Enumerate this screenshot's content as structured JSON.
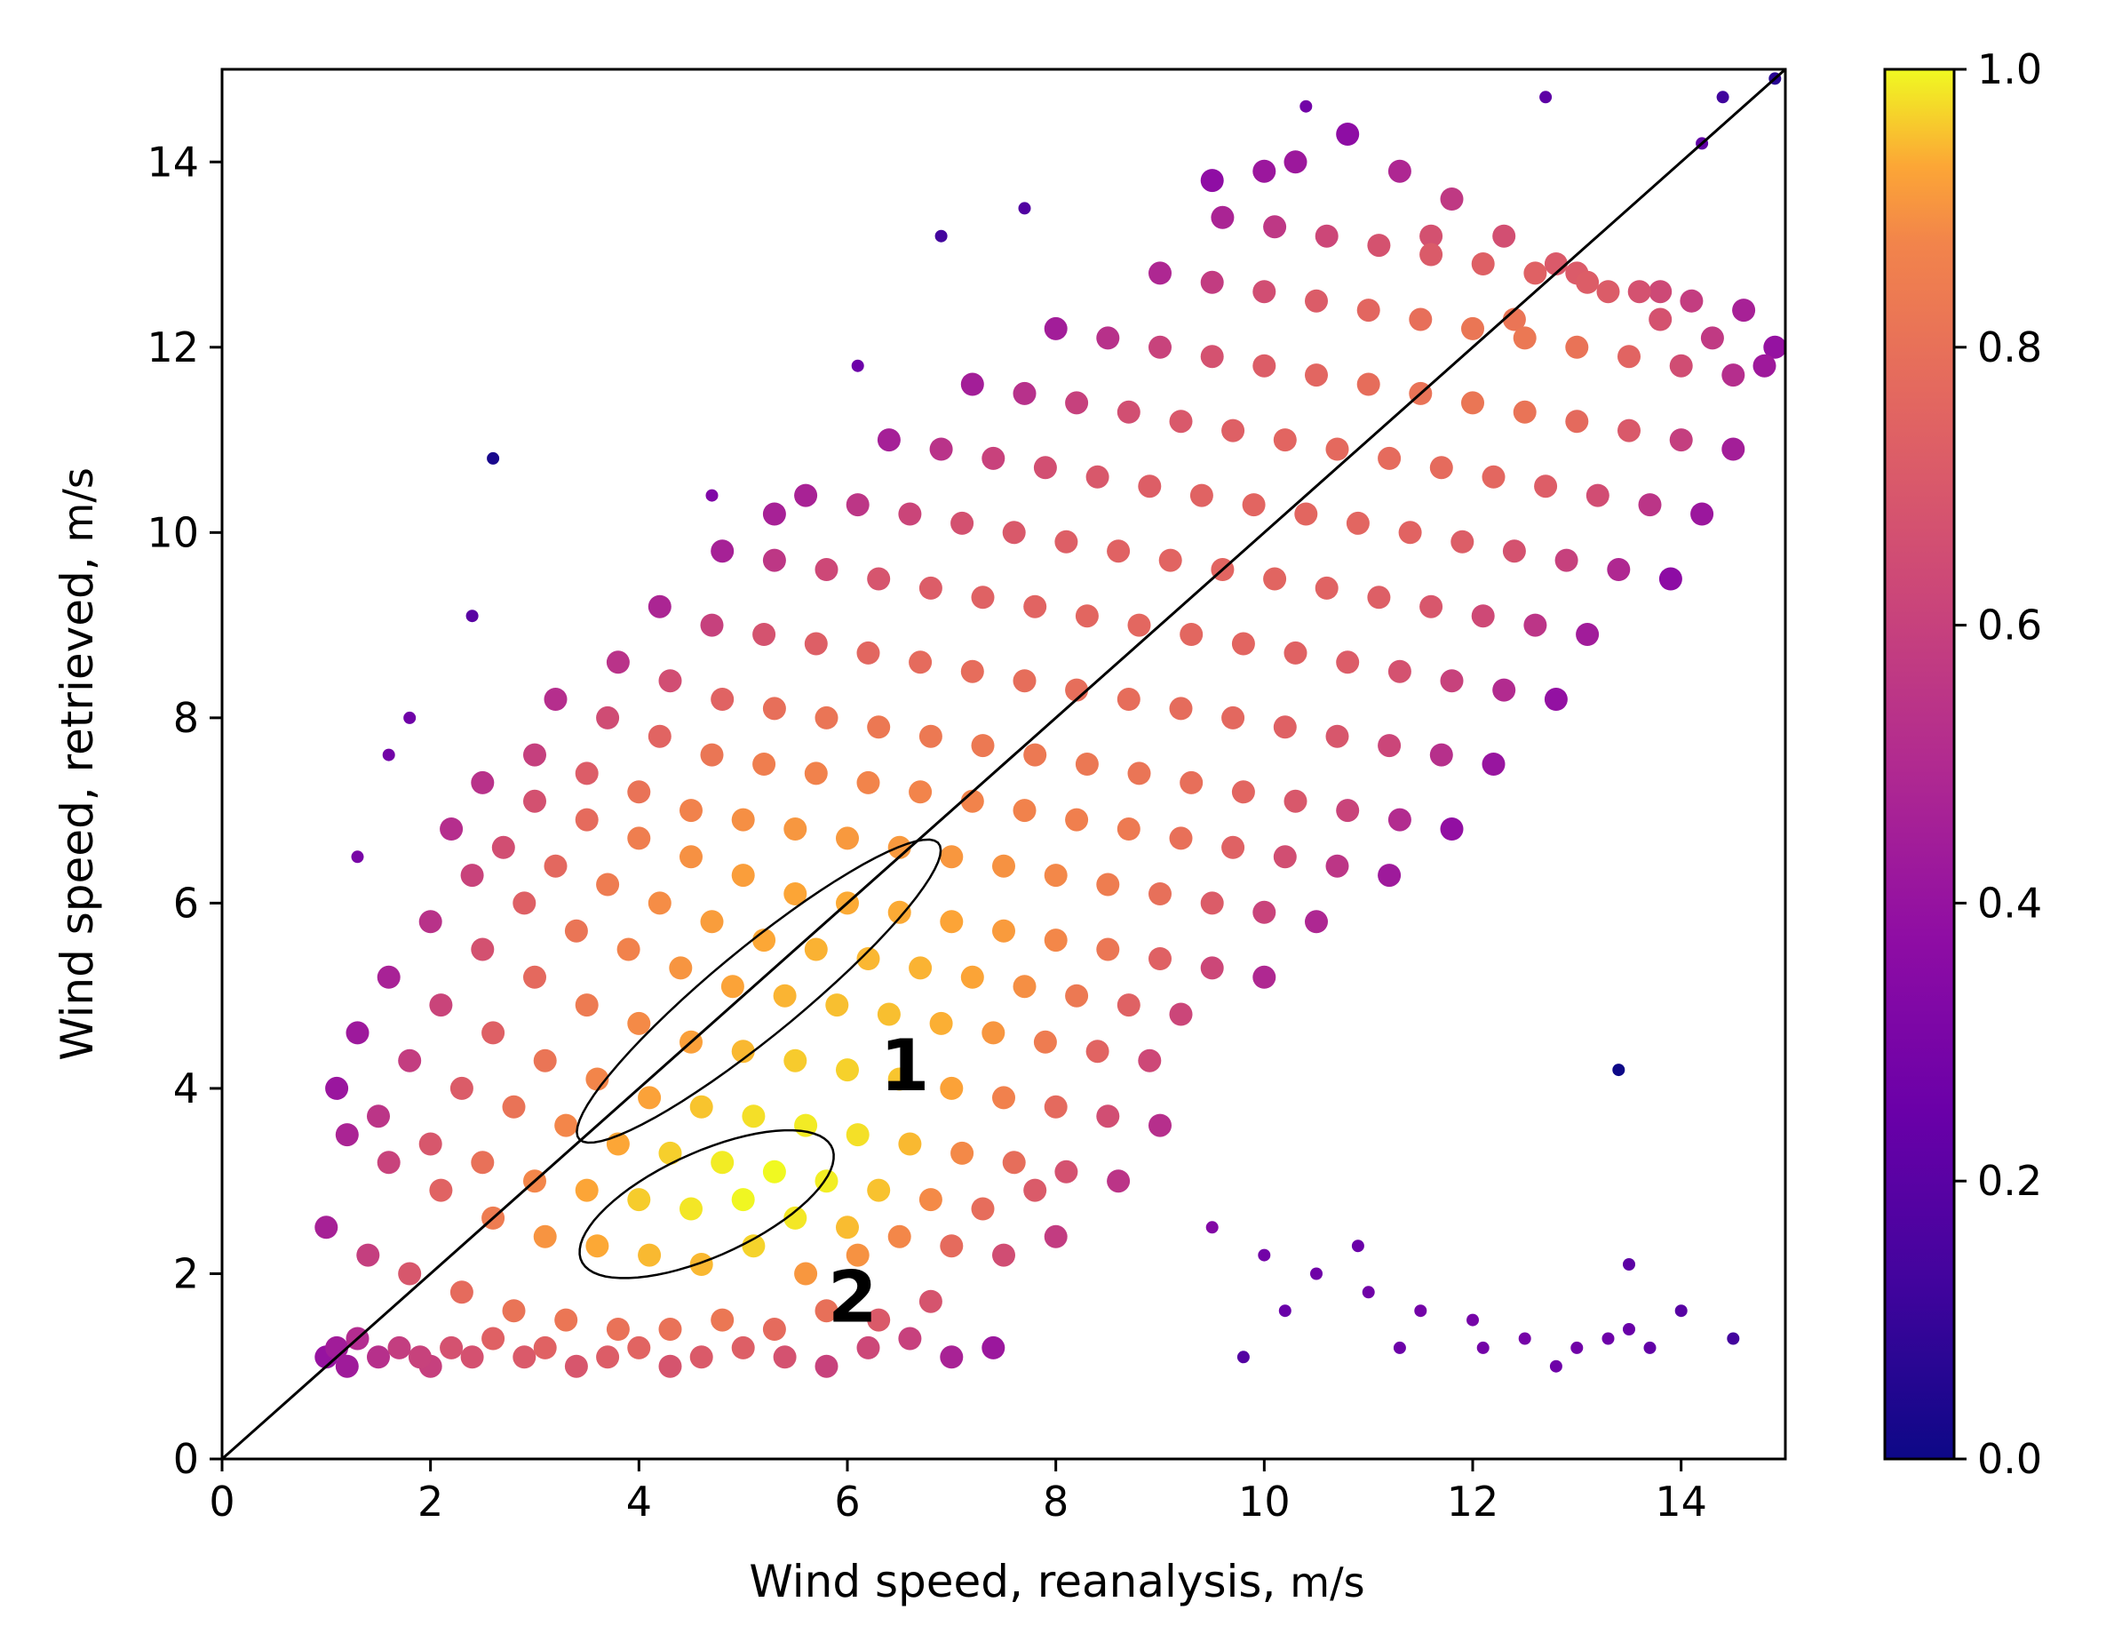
{
  "chart_data": {
    "type": "scatter",
    "title": "",
    "xlabel": "Wind speed, reanalysis",
    "xlabel_unit": "m/s",
    "ylabel": "Wind speed, retrieved",
    "ylabel_unit": "m/s",
    "xlim": [
      0,
      15
    ],
    "ylim": [
      0,
      15
    ],
    "xticks": [
      "0",
      "2",
      "4",
      "6",
      "8",
      "10",
      "12",
      "14"
    ],
    "yticks": [
      "0",
      "2",
      "4",
      "6",
      "8",
      "10",
      "12",
      "14"
    ],
    "grid": false,
    "reference_line": {
      "from": [
        0,
        0
      ],
      "to": [
        15,
        15
      ],
      "color": "#000000"
    },
    "colorbar": {
      "min": 0.0,
      "max": 1.0,
      "ticks": [
        "0.0",
        "0.2",
        "0.4",
        "0.6",
        "0.8",
        "1.0"
      ],
      "colormap": "plasma"
    },
    "regions": [
      {
        "label": "1",
        "center": [
          5.15,
          5.05
        ],
        "semi_axes": [
          2.35,
          0.45
        ],
        "angle_deg": 43
      },
      {
        "label": "2",
        "center": [
          4.65,
          2.75
        ],
        "semi_axes": [
          1.35,
          0.55
        ],
        "angle_deg": 28
      }
    ],
    "series": [
      {
        "points_x": [
          1.0,
          1.1,
          1.2,
          1.3,
          1.5,
          1.7,
          1.9,
          2.0,
          2.2,
          2.4,
          2.6,
          2.9,
          3.1,
          3.4,
          3.7,
          4.0,
          4.3,
          4.6,
          5.0,
          5.4,
          5.8,
          6.2,
          6.6,
          7.0,
          7.4,
          1.0,
          1.4,
          1.8,
          2.3,
          2.8,
          3.3,
          3.8,
          4.3,
          4.8,
          5.3,
          5.8,
          6.3,
          6.8,
          1.2,
          1.6,
          2.1,
          2.6,
          3.1,
          3.6,
          4.1,
          4.6,
          5.1,
          5.6,
          6.1,
          1.1,
          1.5,
          2.0,
          2.5,
          3.0,
          3.5,
          4.0,
          4.5,
          5.0,
          5.5,
          6.0,
          6.5,
          7.0,
          7.5,
          8.0,
          1.3,
          1.8,
          2.3,
          2.8,
          3.3,
          3.8,
          4.3,
          4.8,
          5.3,
          5.8,
          6.3,
          6.8,
          7.3,
          7.8,
          1.6,
          2.1,
          2.6,
          3.1,
          3.6,
          4.1,
          4.6,
          5.1,
          5.6,
          6.1,
          6.6,
          7.1,
          7.6,
          8.1,
          8.6,
          2.0,
          2.5,
          3.0,
          3.5,
          4.0,
          4.5,
          5.0,
          5.5,
          6.0,
          6.5,
          7.0,
          7.5,
          8.0,
          8.5,
          9.0,
          2.4,
          2.9,
          3.4,
          3.9,
          4.4,
          4.9,
          5.4,
          5.9,
          6.4,
          6.9,
          7.4,
          7.9,
          8.4,
          8.9,
          2.2,
          2.7,
          3.2,
          3.7,
          4.2,
          4.7,
          5.2,
          5.7,
          6.2,
          6.7,
          7.2,
          7.7,
          8.2,
          8.7,
          9.2,
          2.5,
          3.0,
          3.5,
          4.0,
          4.5,
          5.0,
          5.5,
          6.0,
          6.5,
          7.0,
          7.5,
          8.0,
          8.5,
          9.0,
          9.5,
          10.0,
          3.0,
          3.5,
          4.0,
          4.5,
          5.0,
          5.5,
          6.0,
          6.5,
          7.0,
          7.5,
          8.0,
          8.5,
          9.0,
          9.5,
          10.0,
          10.5,
          3.2,
          3.7,
          4.2,
          4.7,
          5.2,
          5.7,
          6.2,
          6.7,
          7.2,
          7.7,
          8.2,
          8.7,
          9.2,
          9.7,
          10.2,
          10.7,
          11.2,
          3.8,
          4.3,
          4.8,
          5.3,
          5.8,
          6.3,
          6.8,
          7.3,
          7.8,
          8.3,
          8.8,
          9.3,
          9.8,
          10.3,
          10.8,
          11.3,
          11.8,
          4.2,
          4.7,
          5.2,
          5.7,
          6.2,
          6.7,
          7.2,
          7.7,
          8.2,
          8.7,
          9.2,
          9.7,
          10.2,
          10.7,
          11.2,
          11.7,
          12.2,
          4.8,
          5.3,
          5.8,
          6.3,
          6.8,
          7.3,
          7.8,
          8.3,
          8.8,
          9.3,
          9.8,
          10.3,
          10.8,
          11.3,
          11.8,
          12.3,
          12.8,
          5.6,
          6.1,
          6.6,
          7.1,
          7.6,
          8.1,
          8.6,
          9.1,
          9.6,
          10.1,
          10.6,
          11.1,
          11.6,
          12.1,
          12.6,
          13.1,
          6.4,
          6.9,
          7.4,
          7.9,
          8.4,
          8.9,
          9.4,
          9.9,
          10.4,
          10.9,
          11.4,
          11.9,
          12.4,
          12.9,
          13.4,
          13.9,
          7.2,
          7.7,
          8.2,
          8.7,
          9.2,
          9.7,
          10.2,
          10.7,
          11.2,
          11.7,
          12.2,
          12.7,
          13.2,
          13.7,
          14.2,
          8.0,
          8.5,
          9.0,
          9.5,
          10.0,
          10.5,
          11.0,
          11.5,
          12.0,
          12.5,
          13.0,
          13.5,
          14.0,
          14.5,
          9.0,
          9.5,
          10.0,
          10.5,
          11.0,
          11.5,
          12.0,
          12.5,
          13.0,
          13.5,
          14.0,
          14.5,
          9.6,
          10.1,
          10.6,
          11.1,
          11.6,
          12.1,
          12.6,
          13.1,
          13.6,
          14.1,
          14.6,
          14.9,
          9.5,
          10.0,
          10.5,
          11.0,
          11.5,
          12.0,
          12.5,
          13.0,
          13.5,
          14.0,
          14.5,
          10.3,
          10.8,
          11.3,
          11.8,
          12.3,
          12.8,
          13.3,
          13.8,
          14.3,
          14.8,
          2.6,
          2.4,
          1.3,
          1.6,
          1.8,
          4.7,
          5.3,
          6.1,
          6.9,
          7.7,
          9.8,
          10.2,
          10.9,
          11.3,
          12.8,
          13.3,
          13.7,
          13.4,
          13.5,
          12.1,
          14.2,
          14.4,
          14.9,
          9.5,
          10.0,
          11.6,
          12.4,
          13.0,
          13.8,
          12.7,
          10.4
        ],
        "points_y": [
          1.1,
          1.2,
          1.0,
          1.3,
          1.1,
          1.2,
          1.1,
          1.0,
          1.2,
          1.1,
          1.3,
          1.1,
          1.2,
          1.0,
          1.1,
          1.2,
          1.0,
          1.1,
          1.2,
          1.1,
          1.0,
          1.2,
          1.3,
          1.1,
          1.2,
          2.5,
          2.2,
          2.0,
          1.8,
          1.6,
          1.5,
          1.4,
          1.4,
          1.5,
          1.4,
          1.6,
          1.5,
          1.7,
          3.5,
          3.2,
          2.9,
          2.6,
          2.4,
          2.3,
          2.2,
          2.1,
          2.3,
          2.0,
          2.2,
          4.0,
          3.7,
          3.4,
          3.2,
          3.0,
          2.9,
          2.8,
          2.7,
          2.8,
          2.6,
          2.5,
          2.4,
          2.3,
          2.2,
          2.4,
          4.6,
          4.3,
          4.0,
          3.8,
          3.6,
          3.4,
          3.3,
          3.2,
          3.1,
          3.0,
          2.9,
          2.8,
          2.7,
          2.9,
          5.2,
          4.9,
          4.6,
          4.3,
          4.1,
          3.9,
          3.8,
          3.7,
          3.6,
          3.5,
          3.4,
          3.3,
          3.2,
          3.1,
          3.0,
          5.8,
          5.5,
          5.2,
          4.9,
          4.7,
          4.5,
          4.4,
          4.3,
          4.2,
          4.1,
          4.0,
          3.9,
          3.8,
          3.7,
          3.6,
          6.3,
          6.0,
          5.7,
          5.5,
          5.3,
          5.1,
          5.0,
          4.9,
          4.8,
          4.7,
          4.6,
          4.5,
          4.4,
          4.3,
          6.8,
          6.6,
          6.4,
          6.2,
          6.0,
          5.8,
          5.6,
          5.5,
          5.4,
          5.3,
          5.2,
          5.1,
          5.0,
          4.9,
          4.8,
          7.3,
          7.1,
          6.9,
          6.7,
          6.5,
          6.3,
          6.1,
          6.0,
          5.9,
          5.8,
          5.7,
          5.6,
          5.5,
          5.4,
          5.3,
          5.2,
          7.6,
          7.4,
          7.2,
          7.0,
          6.9,
          6.8,
          6.7,
          6.6,
          6.5,
          6.4,
          6.3,
          6.2,
          6.1,
          6.0,
          5.9,
          5.8,
          8.2,
          8.0,
          7.8,
          7.6,
          7.5,
          7.4,
          7.3,
          7.2,
          7.1,
          7.0,
          6.9,
          6.8,
          6.7,
          6.6,
          6.5,
          6.4,
          6.3,
          8.6,
          8.4,
          8.2,
          8.1,
          8.0,
          7.9,
          7.8,
          7.7,
          7.6,
          7.5,
          7.4,
          7.3,
          7.2,
          7.1,
          7.0,
          6.9,
          6.8,
          9.2,
          9.0,
          8.9,
          8.8,
          8.7,
          8.6,
          8.5,
          8.4,
          8.3,
          8.2,
          8.1,
          8.0,
          7.9,
          7.8,
          7.7,
          7.6,
          7.5,
          9.8,
          9.7,
          9.6,
          9.5,
          9.4,
          9.3,
          9.2,
          9.1,
          9.0,
          8.9,
          8.8,
          8.7,
          8.6,
          8.5,
          8.4,
          8.3,
          8.2,
          10.4,
          10.3,
          10.2,
          10.1,
          10.0,
          9.9,
          9.8,
          9.7,
          9.6,
          9.5,
          9.4,
          9.3,
          9.2,
          9.1,
          9.0,
          8.9,
          11.0,
          10.9,
          10.8,
          10.7,
          10.6,
          10.5,
          10.4,
          10.3,
          10.2,
          10.1,
          10.0,
          9.9,
          9.8,
          9.7,
          9.6,
          9.5,
          11.6,
          11.5,
          11.4,
          11.3,
          11.2,
          11.1,
          11.0,
          10.9,
          10.8,
          10.7,
          10.6,
          10.5,
          10.4,
          10.3,
          10.2,
          12.2,
          12.1,
          12.0,
          11.9,
          11.8,
          11.7,
          11.6,
          11.5,
          11.4,
          11.3,
          11.2,
          11.1,
          11.0,
          10.9,
          12.8,
          12.7,
          12.6,
          12.5,
          12.4,
          12.3,
          12.2,
          12.1,
          12.0,
          11.9,
          11.8,
          11.7,
          13.4,
          13.3,
          13.2,
          13.1,
          13.0,
          12.9,
          12.8,
          12.7,
          12.6,
          12.5,
          12.4,
          12.0,
          2.5,
          2.2,
          2.0,
          1.8,
          1.6,
          1.5,
          1.3,
          1.2,
          1.4,
          1.6,
          1.3,
          14.0,
          14.3,
          13.9,
          13.6,
          13.2,
          12.9,
          12.6,
          12.3,
          12.1,
          11.8,
          10.8,
          9.1,
          6.5,
          7.6,
          8.0,
          10.4,
          10.2,
          11.8,
          13.2,
          13.5,
          1.1,
          1.6,
          2.3,
          1.2,
          1.0,
          1.3,
          1.2,
          4.2,
          2.1,
          1.2,
          14.2,
          14.7,
          14.9,
          13.8,
          13.9,
          13.2,
          12.3,
          12.8,
          12.6,
          14.7,
          14.6
        ]
      }
    ]
  }
}
